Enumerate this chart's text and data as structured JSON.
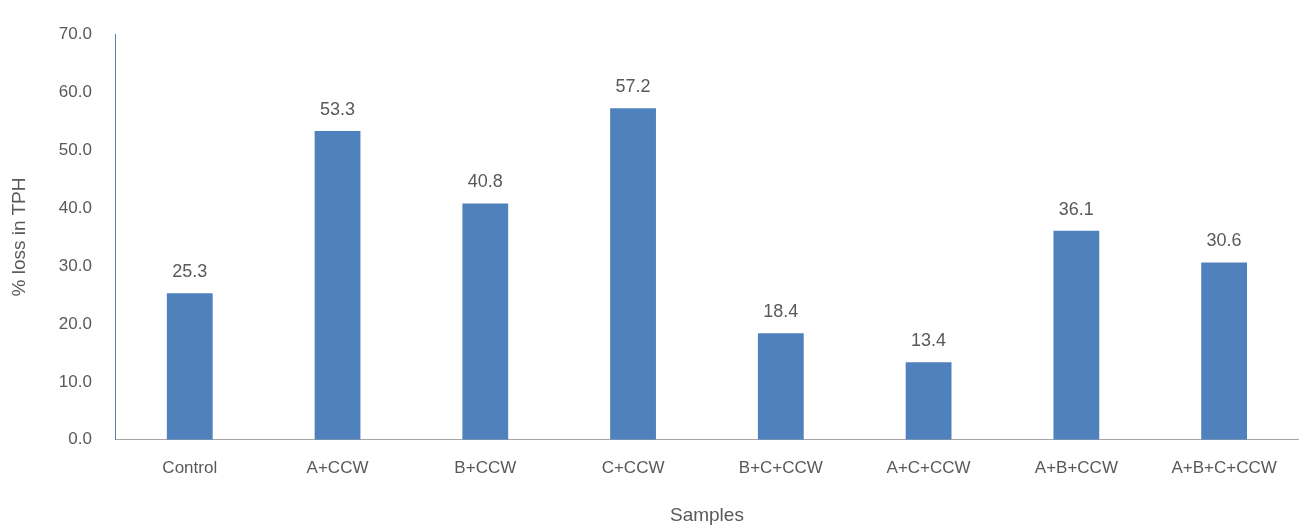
{
  "chart_data": {
    "type": "bar",
    "xlabel": "Samples",
    "ylabel": "% loss in TPH",
    "categories": [
      "Control",
      "A+CCW",
      "B+CCW",
      "C+CCW",
      "B+C+CCW",
      "A+C+CCW",
      "A+B+CCW",
      "A+B+C+CCW"
    ],
    "values": [
      25.3,
      53.3,
      40.8,
      57.2,
      18.4,
      13.4,
      36.1,
      30.6
    ],
    "color": "#4f81bd",
    "ylim": [
      0,
      70
    ],
    "yticks": [
      {
        "value": 0,
        "label": "0.0"
      },
      {
        "value": 10,
        "label": "10.0"
      },
      {
        "value": 20,
        "label": "20.0"
      },
      {
        "value": 30,
        "label": "30.0"
      },
      {
        "value": 40,
        "label": "40.0"
      },
      {
        "value": 50,
        "label": "50.0"
      },
      {
        "value": 60,
        "label": "60.0"
      },
      {
        "value": 70,
        "label": "70.0"
      }
    ],
    "grid": false,
    "legend": false,
    "data_labels": true
  }
}
